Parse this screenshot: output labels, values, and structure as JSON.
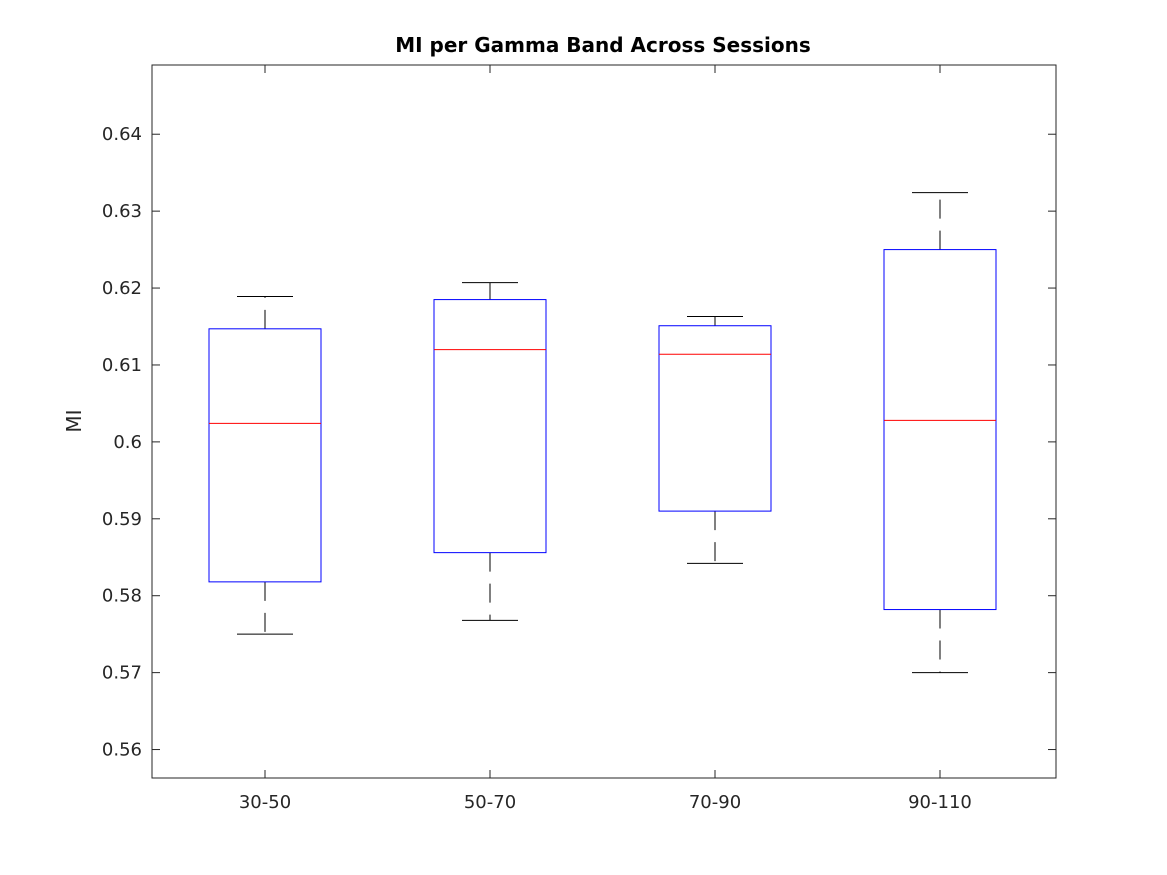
{
  "chart_data": {
    "type": "box",
    "title": "MI per Gamma Band Across Sessions",
    "xlabel": "",
    "ylabel": "MI",
    "ylim": [
      0.5563,
      0.649
    ],
    "yticks": [
      0.56,
      0.57,
      0.58,
      0.59,
      0.6,
      0.61,
      0.62,
      0.63,
      0.64
    ],
    "ytick_labels": [
      "0.56",
      "0.57",
      "0.58",
      "0.59",
      "0.6",
      "0.61",
      "0.62",
      "0.63",
      "0.64"
    ],
    "categories": [
      "30-50",
      "50-70",
      "70-90",
      "90-110"
    ],
    "boxes": [
      {
        "category": "30-50",
        "whisker_low": 0.575,
        "q1": 0.5818,
        "median": 0.6024,
        "q3": 0.6147,
        "whisker_high": 0.6189
      },
      {
        "category": "50-70",
        "whisker_low": 0.5768,
        "q1": 0.5856,
        "median": 0.612,
        "q3": 0.6185,
        "whisker_high": 0.6207
      },
      {
        "category": "70-90",
        "whisker_low": 0.5842,
        "q1": 0.591,
        "median": 0.6114,
        "q3": 0.6151,
        "whisker_high": 0.6163
      },
      {
        "category": "90-110",
        "whisker_low": 0.57,
        "q1": 0.5782,
        "median": 0.6028,
        "q3": 0.625,
        "whisker_high": 0.6324
      }
    ],
    "grid": false,
    "colors": {
      "box": "#0000ff",
      "median": "#ff0000",
      "whisker": "#000000",
      "axis": "#262626"
    }
  }
}
